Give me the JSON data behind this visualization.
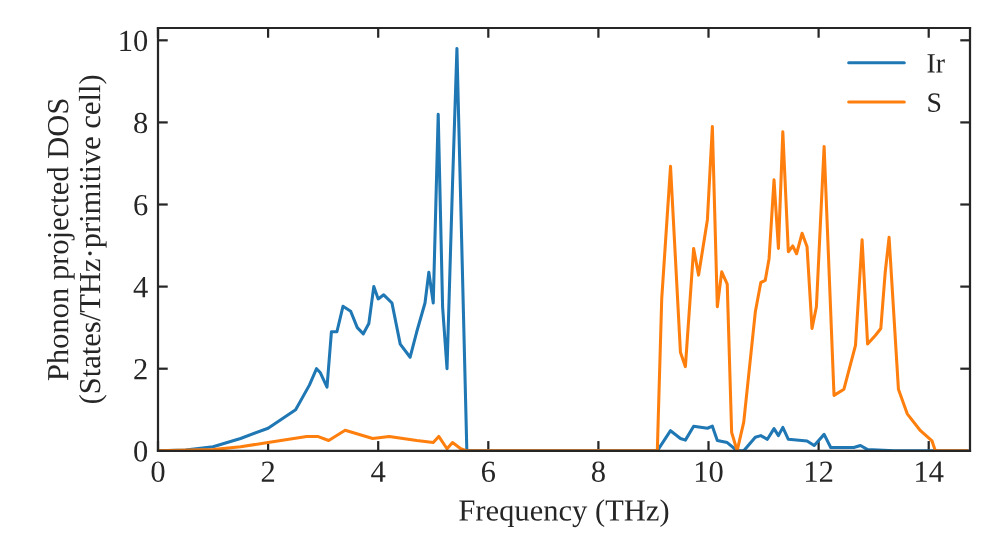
{
  "chart_data": {
    "type": "line",
    "xlabel": "Frequency (THz)",
    "ylabel": "Phonon projected DOS\n(States/THz·primitive cell)",
    "xlim": [
      0,
      14.75
    ],
    "ylim": [
      0,
      10.3
    ],
    "xticks": [
      0,
      2,
      4,
      6,
      8,
      10,
      12,
      14
    ],
    "yticks": [
      0,
      2,
      4,
      6,
      8,
      10
    ],
    "legend": "top right",
    "grid": false,
    "series": [
      {
        "name": "Ir",
        "color": "#1f77b4",
        "x": [
          0,
          0.5,
          1,
          1.5,
          2,
          2.5,
          2.75,
          2.88,
          2.95,
          3.07,
          3.15,
          3.25,
          3.36,
          3.5,
          3.62,
          3.73,
          3.83,
          3.92,
          4.0,
          4.1,
          4.25,
          4.4,
          4.58,
          4.7,
          4.85,
          4.92,
          5.0,
          5.09,
          5.17,
          5.25,
          5.35,
          5.43,
          5.61,
          6,
          9.07,
          9.31,
          9.49,
          9.58,
          9.73,
          9.98,
          10.07,
          10.16,
          10.34,
          10.52,
          10.64,
          10.85,
          10.95,
          11.07,
          11.19,
          11.27,
          11.35,
          11.45,
          11.79,
          11.92,
          12.1,
          12.22,
          12.64,
          12.76,
          12.89,
          13.37,
          14.7
        ],
        "values": [
          0,
          0.02,
          0.1,
          0.3,
          0.55,
          1.0,
          1.6,
          2.0,
          1.9,
          1.55,
          2.9,
          2.9,
          3.52,
          3.4,
          3.0,
          2.85,
          3.1,
          4.0,
          3.7,
          3.8,
          3.6,
          2.6,
          2.28,
          2.9,
          3.6,
          4.35,
          3.6,
          8.2,
          3.5,
          2.0,
          6.5,
          9.8,
          0,
          0,
          0,
          0.49,
          0.3,
          0.26,
          0.6,
          0.55,
          0.6,
          0.25,
          0.2,
          0,
          0,
          0.33,
          0.37,
          0.28,
          0.54,
          0.37,
          0.57,
          0.28,
          0.24,
          0.13,
          0.4,
          0.08,
          0.08,
          0.13,
          0.03,
          0,
          0
        ]
      },
      {
        "name": "S",
        "color": "#ff7f0e",
        "x": [
          0,
          1,
          1.5,
          2,
          2.7,
          2.9,
          3.1,
          3.4,
          3.9,
          4.2,
          4.7,
          5.0,
          5.1,
          5.25,
          5.35,
          5.5,
          5.6,
          9.07,
          9.15,
          9.31,
          9.49,
          9.58,
          9.73,
          9.82,
          9.98,
          10.07,
          10.16,
          10.24,
          10.34,
          10.42,
          10.52,
          10.64,
          10.85,
          10.95,
          11.03,
          11.1,
          11.19,
          11.27,
          11.35,
          11.45,
          11.53,
          11.6,
          11.7,
          11.79,
          11.88,
          11.96,
          12.1,
          12.28,
          12.46,
          12.67,
          12.79,
          12.89,
          13.03,
          13.13,
          13.21,
          13.28,
          13.45,
          13.61,
          13.85,
          14.06,
          14.12,
          14.7
        ],
        "values": [
          0,
          0.03,
          0.1,
          0.2,
          0.35,
          0.35,
          0.25,
          0.5,
          0.3,
          0.35,
          0.25,
          0.2,
          0.35,
          0.05,
          0.2,
          0.05,
          0,
          0,
          3.7,
          6.93,
          2.4,
          2.05,
          4.93,
          4.28,
          5.63,
          7.9,
          3.51,
          4.36,
          4.06,
          0.45,
          0,
          0.7,
          3.38,
          4.1,
          4.15,
          4.68,
          6.6,
          4.93,
          7.77,
          4.85,
          4.99,
          4.8,
          5.3,
          4.97,
          2.98,
          3.51,
          7.41,
          1.35,
          1.5,
          2.57,
          5.14,
          2.6,
          2.81,
          2.98,
          4.35,
          5.2,
          1.5,
          0.9,
          0.49,
          0.24,
          0,
          0
        ]
      }
    ]
  }
}
